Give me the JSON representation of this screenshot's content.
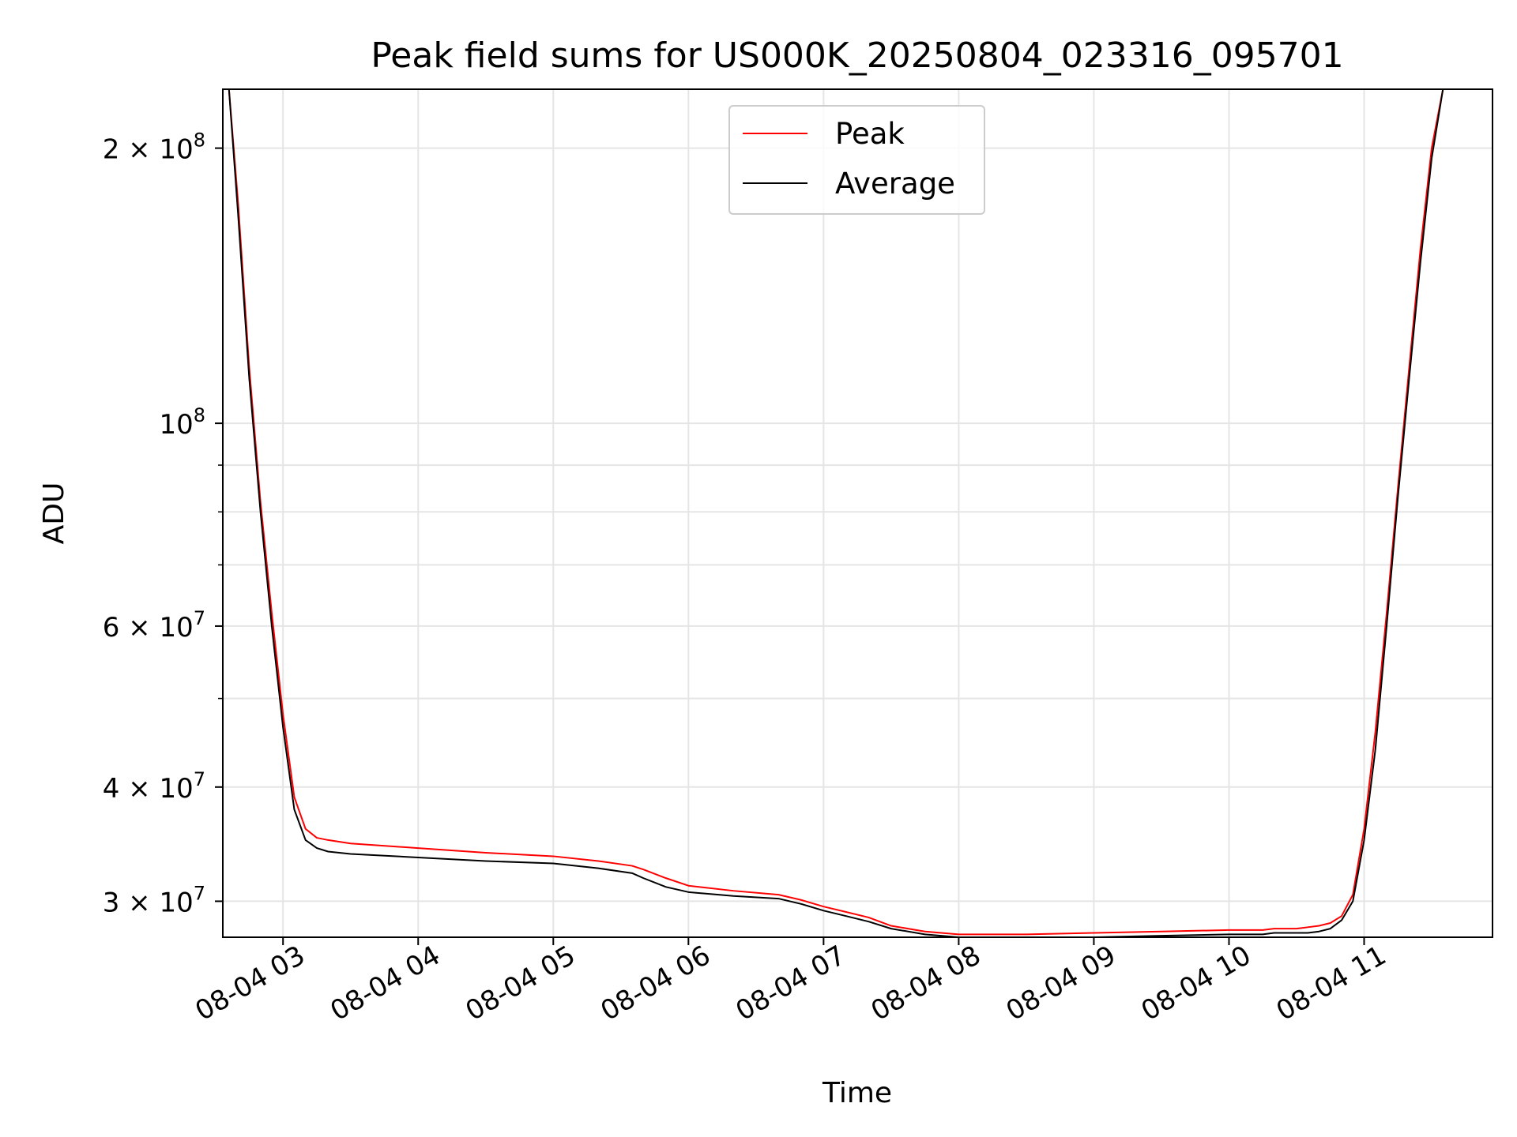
{
  "chart_data": {
    "type": "line",
    "title": "Peak field sums for US000K_20250804_023316_095701",
    "xlabel": "Time",
    "ylabel": "ADU",
    "yscale": "log",
    "ylim": [
      27400000,
      232000000
    ],
    "xlim": [
      "2025-08-04 02:33:16",
      "2025-08-04 11:57:00"
    ],
    "grid": true,
    "legend_position": "upper center",
    "x_ticks": [
      {
        "value": "2025-08-04 03:00",
        "label": "08-04 03"
      },
      {
        "value": "2025-08-04 04:00",
        "label": "08-04 04"
      },
      {
        "value": "2025-08-04 05:00",
        "label": "08-04 05"
      },
      {
        "value": "2025-08-04 06:00",
        "label": "08-04 06"
      },
      {
        "value": "2025-08-04 07:00",
        "label": "08-04 07"
      },
      {
        "value": "2025-08-04 08:00",
        "label": "08-04 08"
      },
      {
        "value": "2025-08-04 09:00",
        "label": "08-04 09"
      },
      {
        "value": "2025-08-04 10:00",
        "label": "08-04 10"
      },
      {
        "value": "2025-08-04 11:00",
        "label": "08-04 11"
      }
    ],
    "y_ticks": [
      {
        "value": 30000000,
        "mant": "3",
        "exp": "7"
      },
      {
        "value": 40000000,
        "mant": "4",
        "exp": "7"
      },
      {
        "value": 60000000,
        "mant": "6",
        "exp": "7"
      },
      {
        "value": 100000000,
        "mant": "",
        "exp": "8"
      },
      {
        "value": 200000000,
        "mant": "2",
        "exp": "8"
      }
    ],
    "y_minor_ticks": [
      50000000,
      70000000,
      80000000,
      90000000
    ],
    "series": [
      {
        "name": "Peak",
        "color": "#ff0000",
        "x": [
          "2025-08-04 02:33:16",
          "2025-08-04 02:36:00",
          "2025-08-04 02:40:00",
          "2025-08-04 02:45:00",
          "2025-08-04 02:50:00",
          "2025-08-04 02:55:00",
          "2025-08-04 03:00:00",
          "2025-08-04 03:05:00",
          "2025-08-04 03:10:00",
          "2025-08-04 03:15:00",
          "2025-08-04 03:20:00",
          "2025-08-04 03:30:00",
          "2025-08-04 04:00:00",
          "2025-08-04 04:30:00",
          "2025-08-04 05:00:00",
          "2025-08-04 05:20:00",
          "2025-08-04 05:35:00",
          "2025-08-04 05:40:00",
          "2025-08-04 05:50:00",
          "2025-08-04 06:00:00",
          "2025-08-04 06:20:00",
          "2025-08-04 06:40:00",
          "2025-08-04 06:50:00",
          "2025-08-04 07:00:00",
          "2025-08-04 07:10:00",
          "2025-08-04 07:20:00",
          "2025-08-04 07:30:00",
          "2025-08-04 07:45:00",
          "2025-08-04 08:00:00",
          "2025-08-04 08:30:00",
          "2025-08-04 09:00:00",
          "2025-08-04 09:30:00",
          "2025-08-04 10:00:00",
          "2025-08-04 10:10:00",
          "2025-08-04 10:15:00",
          "2025-08-04 10:20:00",
          "2025-08-04 10:25:00",
          "2025-08-04 10:30:00",
          "2025-08-04 10:35:00",
          "2025-08-04 10:40:00",
          "2025-08-04 10:45:00",
          "2025-08-04 10:50:00",
          "2025-08-04 10:55:00",
          "2025-08-04 11:00:00",
          "2025-08-04 11:05:00",
          "2025-08-04 11:10:00",
          "2025-08-04 11:15:00",
          "2025-08-04 11:20:00",
          "2025-08-04 11:25:00",
          "2025-08-04 11:30:00",
          "2025-08-04 11:35:00",
          "2025-08-04 11:40:00",
          "2025-08-04 11:45:00",
          "2025-08-04 11:50:00"
        ],
        "values": [
          232000000,
          232000000,
          175000000,
          115000000,
          82000000,
          62000000,
          48000000,
          39000000,
          36000000,
          35200000,
          35000000,
          34700000,
          34300000,
          33900000,
          33600000,
          33200000,
          32800000,
          32500000,
          31800000,
          31200000,
          30800000,
          30500000,
          30100000,
          29600000,
          29200000,
          28800000,
          28200000,
          27800000,
          27600000,
          27600000,
          27700000,
          27800000,
          27900000,
          27900000,
          27900000,
          28000000,
          28000000,
          28000000,
          28100000,
          28200000,
          28400000,
          28900000,
          30500000,
          36000000,
          46000000,
          62000000,
          85000000,
          115000000,
          155000000,
          200000000,
          232000000,
          232000000,
          232000000,
          232000000
        ]
      },
      {
        "name": "Average",
        "color": "#000000",
        "x": [
          "2025-08-04 02:33:16",
          "2025-08-04 02:36:00",
          "2025-08-04 02:40:00",
          "2025-08-04 02:45:00",
          "2025-08-04 02:50:00",
          "2025-08-04 02:55:00",
          "2025-08-04 03:00:00",
          "2025-08-04 03:05:00",
          "2025-08-04 03:10:00",
          "2025-08-04 03:15:00",
          "2025-08-04 03:20:00",
          "2025-08-04 03:30:00",
          "2025-08-04 04:00:00",
          "2025-08-04 04:30:00",
          "2025-08-04 05:00:00",
          "2025-08-04 05:20:00",
          "2025-08-04 05:35:00",
          "2025-08-04 05:40:00",
          "2025-08-04 05:50:00",
          "2025-08-04 06:00:00",
          "2025-08-04 06:20:00",
          "2025-08-04 06:40:00",
          "2025-08-04 06:50:00",
          "2025-08-04 07:00:00",
          "2025-08-04 07:10:00",
          "2025-08-04 07:20:00",
          "2025-08-04 07:30:00",
          "2025-08-04 07:45:00",
          "2025-08-04 08:00:00",
          "2025-08-04 08:30:00",
          "2025-08-04 09:00:00",
          "2025-08-04 09:30:00",
          "2025-08-04 10:00:00",
          "2025-08-04 10:10:00",
          "2025-08-04 10:15:00",
          "2025-08-04 10:20:00",
          "2025-08-04 10:25:00",
          "2025-08-04 10:30:00",
          "2025-08-04 10:35:00",
          "2025-08-04 10:40:00",
          "2025-08-04 10:45:00",
          "2025-08-04 10:50:00",
          "2025-08-04 10:55:00",
          "2025-08-04 11:00:00",
          "2025-08-04 11:05:00",
          "2025-08-04 11:10:00",
          "2025-08-04 11:15:00",
          "2025-08-04 11:20:00",
          "2025-08-04 11:25:00",
          "2025-08-04 11:30:00",
          "2025-08-04 11:35:00",
          "2025-08-04 11:40:00",
          "2025-08-04 11:45:00",
          "2025-08-04 11:50:00"
        ],
        "values": [
          232000000,
          232000000,
          170000000,
          112000000,
          80000000,
          60000000,
          46500000,
          37800000,
          35000000,
          34300000,
          34000000,
          33800000,
          33500000,
          33200000,
          33000000,
          32600000,
          32200000,
          31800000,
          31100000,
          30700000,
          30400000,
          30200000,
          29800000,
          29300000,
          28900000,
          28500000,
          28000000,
          27600000,
          27400000,
          27400000,
          27400000,
          27500000,
          27600000,
          27600000,
          27600000,
          27700000,
          27700000,
          27700000,
          27700000,
          27800000,
          28000000,
          28600000,
          30000000,
          35000000,
          44000000,
          60000000,
          83000000,
          112000000,
          150000000,
          195000000,
          232000000,
          232000000,
          232000000,
          232000000
        ]
      }
    ]
  }
}
